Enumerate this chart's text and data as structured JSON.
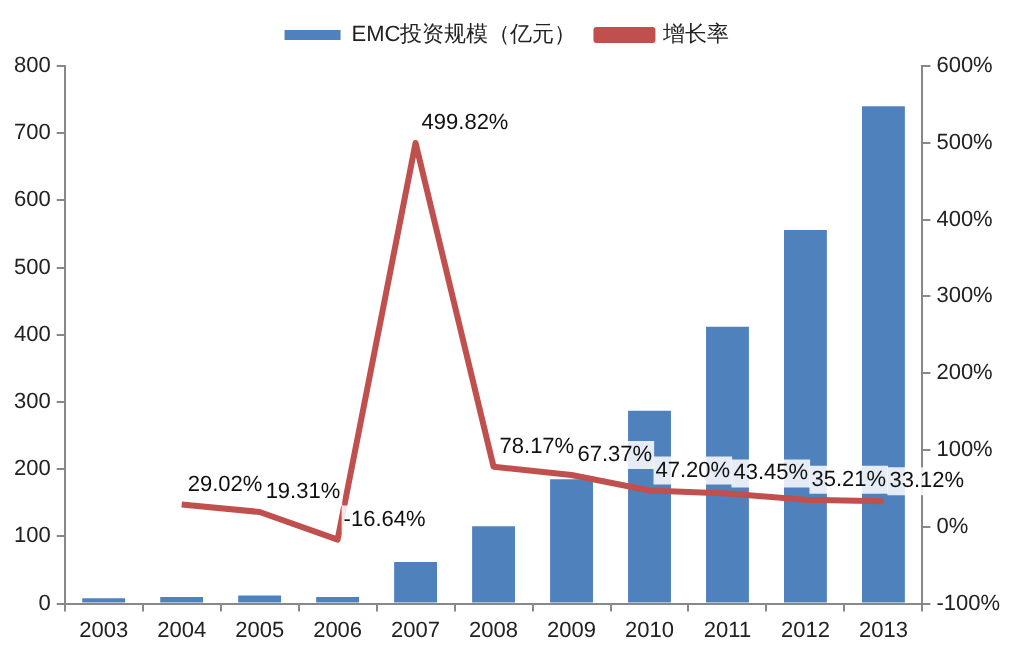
{
  "chart_data": {
    "type": "bar",
    "categories": [
      "2003",
      "2004",
      "2005",
      "2006",
      "2007",
      "2008",
      "2009",
      "2010",
      "2011",
      "2012",
      "2013"
    ],
    "series": [
      {
        "name": "EMC投资规模（亿元）",
        "color": "#4f81bd",
        "values": [
          8,
          10,
          12,
          10,
          62,
          115,
          185,
          287,
          412,
          556,
          740
        ]
      },
      {
        "name": "增长率",
        "type": "line",
        "axis": "y2",
        "color": "#c0504d",
        "marker": "none",
        "values": [
          null,
          29.02,
          19.31,
          -16.64,
          499.82,
          78.17,
          67.37,
          47.2,
          43.45,
          35.21,
          33.12
        ],
        "value_labels": [
          null,
          "29.02%",
          "19.31%",
          "-16.64%",
          "499.82%",
          "78.17%",
          "67.37%",
          "47.20%",
          "43.45%",
          "35.21%",
          "33.12%"
        ]
      }
    ],
    "ylim": [
      0,
      800
    ],
    "yticks": [
      0,
      100,
      200,
      300,
      400,
      500,
      600,
      700,
      800
    ],
    "y2lim": [
      -100,
      600
    ],
    "y2ticks": [
      {
        "value": -100,
        "label": "-100%"
      },
      {
        "value": 0,
        "label": "0%"
      },
      {
        "value": 100,
        "label": "100%"
      },
      {
        "value": 200,
        "label": "200%"
      },
      {
        "value": 300,
        "label": "300%"
      },
      {
        "value": 400,
        "label": "400%"
      },
      {
        "value": 500,
        "label": "500%"
      },
      {
        "value": 600,
        "label": "600%"
      }
    ],
    "grid": false,
    "legend": "top"
  }
}
